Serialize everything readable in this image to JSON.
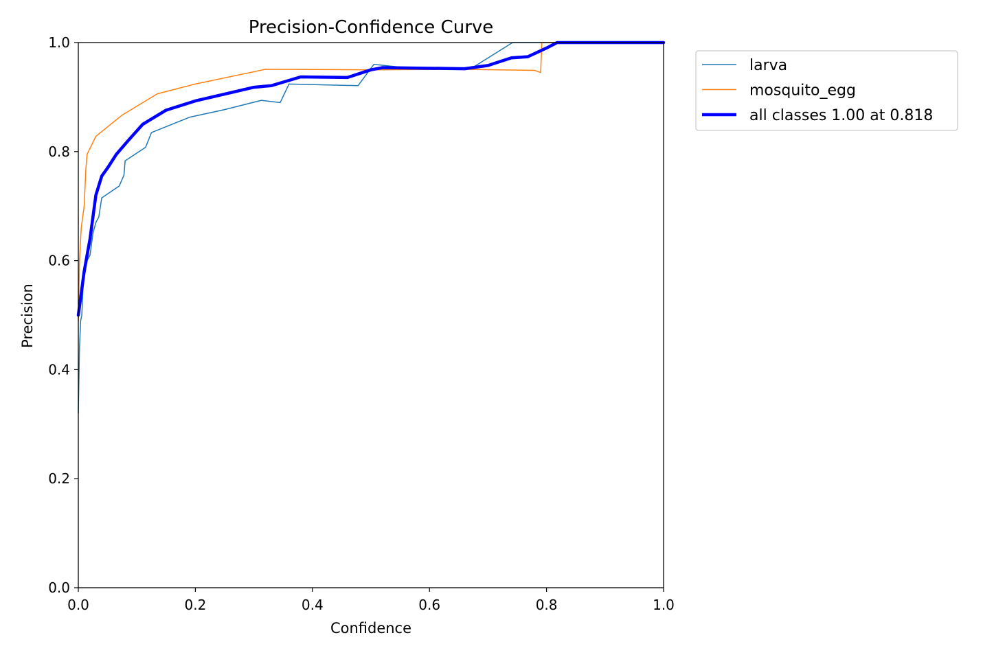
{
  "chart_data": {
    "type": "line",
    "title": "Precision-Confidence Curve",
    "xlabel": "Confidence",
    "ylabel": "Precision",
    "xlim": [
      0,
      1
    ],
    "ylim": [
      0,
      1
    ],
    "x_ticks": [
      "0.0",
      "0.2",
      "0.4",
      "0.6",
      "0.8",
      "1.0"
    ],
    "y_ticks": [
      "0.0",
      "0.2",
      "0.4",
      "0.6",
      "0.8",
      "1.0"
    ],
    "grid": false,
    "legend_position": "outside-top-right",
    "series": [
      {
        "name": "larva",
        "color": "#1f77b4",
        "line_width": "thin",
        "points": [
          [
            0.0,
            0.32
          ],
          [
            0.002,
            0.44
          ],
          [
            0.004,
            0.49
          ],
          [
            0.006,
            0.5
          ],
          [
            0.008,
            0.55
          ],
          [
            0.01,
            0.57
          ],
          [
            0.015,
            0.6
          ],
          [
            0.02,
            0.61
          ],
          [
            0.025,
            0.65
          ],
          [
            0.03,
            0.67
          ],
          [
            0.035,
            0.68
          ],
          [
            0.04,
            0.715
          ],
          [
            0.07,
            0.737
          ],
          [
            0.078,
            0.757
          ],
          [
            0.08,
            0.783
          ],
          [
            0.115,
            0.808
          ],
          [
            0.125,
            0.835
          ],
          [
            0.19,
            0.863
          ],
          [
            0.25,
            0.877
          ],
          [
            0.313,
            0.894
          ],
          [
            0.345,
            0.89
          ],
          [
            0.36,
            0.924
          ],
          [
            0.478,
            0.921
          ],
          [
            0.505,
            0.96
          ],
          [
            0.55,
            0.955
          ],
          [
            0.6,
            0.954
          ],
          [
            0.65,
            0.953
          ],
          [
            0.675,
            0.955
          ],
          [
            0.742,
            1.0
          ],
          [
            1.0,
            1.0
          ]
        ]
      },
      {
        "name": "mosquito_egg",
        "color": "#ff7f0e",
        "line_width": "thin",
        "points": [
          [
            0.0,
            0.49
          ],
          [
            0.002,
            0.6
          ],
          [
            0.005,
            0.66
          ],
          [
            0.01,
            0.7
          ],
          [
            0.013,
            0.77
          ],
          [
            0.015,
            0.795
          ],
          [
            0.03,
            0.828
          ],
          [
            0.075,
            0.867
          ],
          [
            0.135,
            0.906
          ],
          [
            0.2,
            0.924
          ],
          [
            0.32,
            0.951
          ],
          [
            0.5,
            0.95
          ],
          [
            0.65,
            0.951
          ],
          [
            0.78,
            0.949
          ],
          [
            0.79,
            0.945
          ],
          [
            0.792,
            1.0
          ],
          [
            1.0,
            1.0
          ]
        ]
      },
      {
        "name": "all classes 1.00 at 0.818",
        "color": "#0000ff",
        "line_width": "thick",
        "points": [
          [
            0.0,
            0.5
          ],
          [
            0.005,
            0.54
          ],
          [
            0.01,
            0.58
          ],
          [
            0.02,
            0.64
          ],
          [
            0.03,
            0.72
          ],
          [
            0.04,
            0.755
          ],
          [
            0.05,
            0.77
          ],
          [
            0.065,
            0.795
          ],
          [
            0.085,
            0.82
          ],
          [
            0.11,
            0.85
          ],
          [
            0.15,
            0.876
          ],
          [
            0.2,
            0.893
          ],
          [
            0.26,
            0.908
          ],
          [
            0.3,
            0.918
          ],
          [
            0.33,
            0.921
          ],
          [
            0.38,
            0.937
          ],
          [
            0.46,
            0.936
          ],
          [
            0.5,
            0.95
          ],
          [
            0.52,
            0.954
          ],
          [
            0.66,
            0.952
          ],
          [
            0.7,
            0.958
          ],
          [
            0.74,
            0.972
          ],
          [
            0.768,
            0.974
          ],
          [
            0.8,
            0.99
          ],
          [
            0.818,
            1.0
          ],
          [
            1.0,
            1.0
          ]
        ]
      }
    ]
  }
}
